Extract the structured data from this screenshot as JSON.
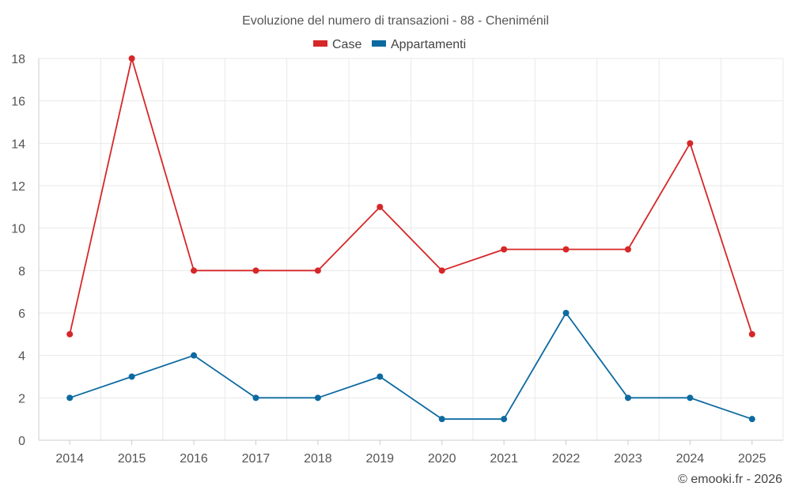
{
  "chart_data": {
    "type": "line",
    "title": "Evoluzione del numero di transazioni - 88 - Cheniménil",
    "categories": [
      "2014",
      "2015",
      "2016",
      "2017",
      "2018",
      "2019",
      "2020",
      "2021",
      "2022",
      "2023",
      "2024",
      "2025"
    ],
    "series": [
      {
        "name": "Case",
        "color": "#d62728",
        "values": [
          5,
          18,
          8,
          8,
          8,
          11,
          8,
          9,
          9,
          9,
          14,
          5
        ]
      },
      {
        "name": "Appartamenti",
        "color": "#0d6aa1",
        "values": [
          2,
          3,
          4,
          2,
          2,
          3,
          1,
          1,
          6,
          2,
          2,
          1
        ]
      }
    ],
    "ylim": [
      0,
      18
    ],
    "yticks": [
      "0",
      "2",
      "4",
      "6",
      "8",
      "10",
      "12",
      "14",
      "16",
      "18"
    ],
    "grid": true,
    "legend": "top-center",
    "xlabel": "",
    "ylabel": ""
  },
  "credit": "© emooki.fr - 2026"
}
